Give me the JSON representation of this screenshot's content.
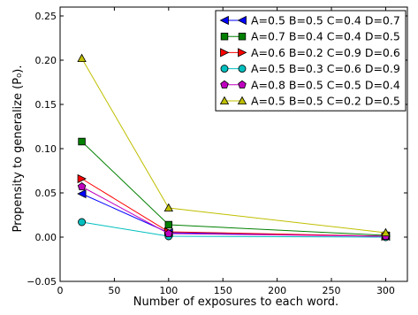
{
  "chart_data": {
    "type": "line",
    "xlabel": "Number of exposures to each word.",
    "ylabel": "Propensity to generalize (P₀).",
    "xlim": [
      0,
      320
    ],
    "ylim": [
      -0.05,
      0.26
    ],
    "xticks": [
      0,
      50,
      100,
      150,
      200,
      250,
      300
    ],
    "yticks": [
      -0.05,
      0.0,
      0.05,
      0.1,
      0.15,
      0.2,
      0.25
    ],
    "xtick_labels": [
      "0",
      "50",
      "100",
      "150",
      "200",
      "250",
      "300"
    ],
    "ytick_labels": [
      "−0.05",
      "0.00",
      "0.05",
      "0.10",
      "0.15",
      "0.20",
      "0.25"
    ],
    "grid": false,
    "legend_position": "top-right",
    "x": [
      20,
      100,
      300
    ],
    "series": [
      {
        "name": "A=0.5 B=0.5 C=0.4 D=0.7",
        "color": "#0000ff",
        "marker": "triangle-left",
        "values": [
          0.049,
          0.005,
          0.001
        ]
      },
      {
        "name": "A=0.7 B=0.4 C=0.4 D=0.5",
        "color": "#008000",
        "marker": "square",
        "values": [
          0.108,
          0.014,
          0.002
        ]
      },
      {
        "name": "A=0.6 B=0.2 C=0.9 D=0.6",
        "color": "#ff0000",
        "marker": "triangle-right",
        "values": [
          0.066,
          0.006,
          0.001
        ]
      },
      {
        "name": "A=0.5 B=0.3 C=0.6 D=0.9",
        "color": "#00bfbf",
        "marker": "circle",
        "values": [
          0.017,
          0.001,
          0.0
        ]
      },
      {
        "name": "A=0.8 B=0.5 C=0.5 D=0.4",
        "color": "#bf00bf",
        "marker": "pentagon",
        "values": [
          0.057,
          0.004,
          0.001
        ]
      },
      {
        "name": "A=0.5 B=0.5 C=0.2 D=0.5",
        "color": "#bfbf00",
        "marker": "triangle-up",
        "values": [
          0.202,
          0.033,
          0.005
        ]
      }
    ]
  }
}
